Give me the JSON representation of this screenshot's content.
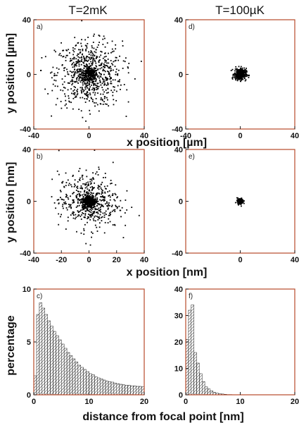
{
  "column_titles": [
    "T=2mK",
    "T=100µK"
  ],
  "shared_labels": {
    "y_position_um": "y position [µm]",
    "x_position_um": "x position [µm]",
    "y_position_nm": "y position [nm]",
    "x_position_nm": "x position [nm]",
    "percentage": "percentage",
    "distance": "distance from focal point [nm]"
  },
  "chart_data": [
    {
      "id": "a",
      "panel_label": "a)",
      "type": "scatter",
      "title": "T=2mK",
      "xlabel": "x position [µm]",
      "ylabel": "y position [µm]",
      "xlim": [
        -40,
        40
      ],
      "ylim": [
        -40,
        40
      ],
      "xticks": [
        -40,
        0,
        40
      ],
      "yticks": [
        -40,
        0,
        40
      ],
      "point_cloud": {
        "n": 900,
        "center": [
          0,
          0
        ],
        "spread_sd": 12,
        "core_fraction": 0.22,
        "core_sd": 3
      },
      "axis_color": "#b84a2a"
    },
    {
      "id": "d",
      "panel_label": "d)",
      "type": "scatter",
      "title": "T=100µK",
      "xlim": [
        -40,
        40
      ],
      "ylim": [
        -40,
        40
      ],
      "xticks": [
        -40,
        0,
        40
      ],
      "yticks": [
        -40,
        0,
        40
      ],
      "point_cloud": {
        "n": 700,
        "center": [
          0,
          0
        ],
        "spread_sd": 2.2,
        "core_fraction": 0.6,
        "core_sd": 1.2
      },
      "axis_color": "#b84a2a"
    },
    {
      "id": "b",
      "panel_label": "b)",
      "type": "scatter",
      "xlabel": "x position [nm]",
      "ylabel": "y position [nm]",
      "xlim": [
        -40,
        40
      ],
      "ylim": [
        -40,
        40
      ],
      "xticks": [
        -40,
        -20,
        0,
        20,
        40
      ],
      "yticks": [
        -40,
        0,
        40
      ],
      "point_cloud": {
        "n": 850,
        "center": [
          0,
          0
        ],
        "spread_sd": 11,
        "core_fraction": 0.45,
        "core_sd": 2.5
      },
      "axis_color": "#b84a2a"
    },
    {
      "id": "e",
      "panel_label": "e)",
      "type": "scatter",
      "xlim": [
        -40,
        40
      ],
      "ylim": [
        -40,
        40
      ],
      "xticks": [
        0,
        40
      ],
      "yticks": [
        -40,
        0,
        40
      ],
      "point_cloud": {
        "n": 300,
        "center": [
          0,
          0
        ],
        "spread_sd": 1.2,
        "core_fraction": 0.7,
        "core_sd": 0.8
      },
      "axis_color": "#b84a2a"
    },
    {
      "id": "c",
      "panel_label": "c)",
      "type": "bar",
      "xlabel": "distance from focal point [nm]",
      "ylabel": "percentage",
      "xlim": [
        0,
        20
      ],
      "ylim": [
        0,
        10
      ],
      "xticks": [
        0,
        10,
        20
      ],
      "yticks": [
        0,
        5,
        10
      ],
      "bin_width": 0.5,
      "values": [
        1.8,
        7.6,
        8.7,
        8.2,
        7.6,
        7.0,
        6.5,
        6.0,
        5.6,
        5.2,
        4.8,
        4.4,
        4.0,
        3.7,
        3.4,
        3.1,
        2.8,
        2.6,
        2.4,
        2.2,
        2.0,
        1.9,
        1.7,
        1.6,
        1.5,
        1.4,
        1.3,
        1.25,
        1.2,
        1.1,
        1.05,
        1.0,
        0.95,
        0.9,
        0.9,
        0.85,
        0.85,
        0.8,
        0.8,
        0.75
      ],
      "axis_color": "#b84a2a"
    },
    {
      "id": "f",
      "panel_label": "f)",
      "type": "bar",
      "xlim": [
        0,
        20
      ],
      "ylim": [
        0,
        40
      ],
      "xticks": [
        0,
        10,
        20
      ],
      "yticks": [
        0,
        10,
        20,
        30,
        40
      ],
      "bin_width": 0.5,
      "values": [
        21,
        32,
        34,
        16,
        12,
        8,
        5,
        3,
        2.2,
        1.5,
        1.0,
        0.6,
        0.4,
        0.3,
        0.2,
        0.1,
        0.1,
        0.05,
        0.05,
        0.0
      ],
      "axis_color": "#b84a2a"
    }
  ]
}
